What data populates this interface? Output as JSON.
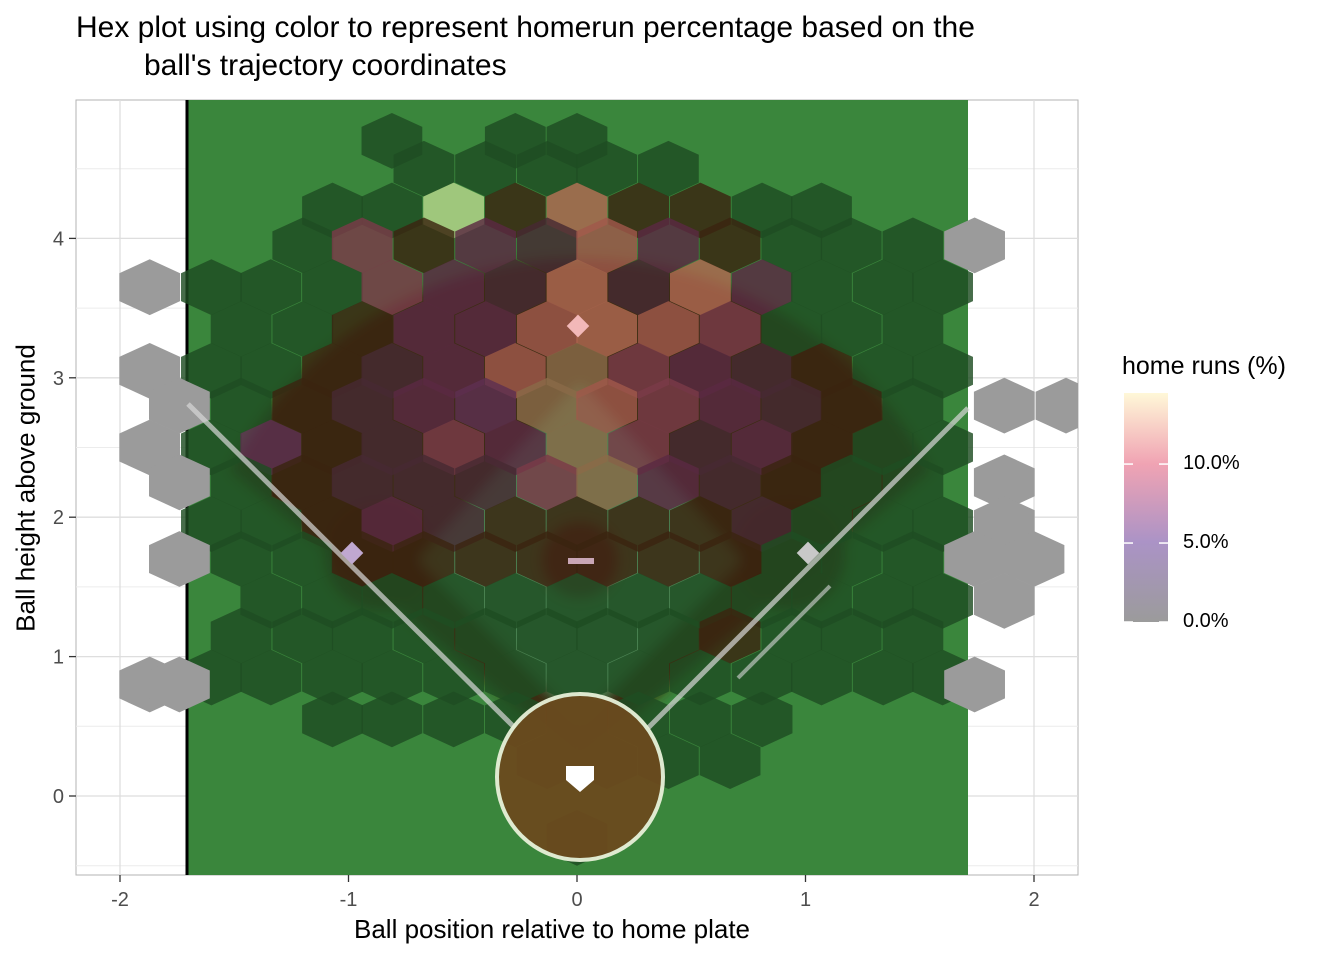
{
  "chart_data": {
    "type": "heatmap",
    "subtype": "hexbin",
    "title": "Hex plot using color to represent homerun percentage based on the",
    "title_line2": "ball's trajectory coordinates",
    "xlabel": "Ball position relative to home plate",
    "ylabel": "Ball height above ground",
    "xlim": [
      -2.2,
      2.2
    ],
    "ylim": [
      -0.55,
      4.98
    ],
    "x_ticks": [
      -2,
      -1,
      0,
      1,
      2
    ],
    "x_tick_labels": [
      "-2",
      "-1",
      "0",
      "1",
      "2"
    ],
    "y_ticks": [
      0,
      1,
      2,
      3,
      4
    ],
    "y_tick_labels": [
      "0",
      "1",
      "2",
      "3",
      "4"
    ],
    "grid": true,
    "legend": {
      "title": "home runs (%)",
      "position": "right",
      "breaks": [
        0,
        5,
        10
      ],
      "labels": [
        "0.0%",
        "5.0%",
        "10.0%"
      ],
      "range": [
        0,
        14.5
      ],
      "colors": [
        "#9b9b9b",
        "#ab93c6",
        "#f0a3b3",
        "#fff8d8"
      ]
    },
    "background": {
      "field_color": "#3a863c",
      "dirt_color": "#3a2410",
      "base_color": "#ffffff"
    },
    "hex_size_x": 0.133,
    "hex_size_y": 0.2,
    "hexes": [
      [
        -0.81,
        4.7,
        0
      ],
      [
        -0.27,
        4.7,
        0
      ],
      [
        0,
        4.7,
        0
      ],
      [
        -0.67,
        4.5,
        0
      ],
      [
        -0.4,
        4.5,
        0
      ],
      [
        -0.13,
        4.5,
        0
      ],
      [
        0.13,
        4.5,
        0
      ],
      [
        0.4,
        4.5,
        0
      ],
      [
        -1.07,
        4.2,
        0
      ],
      [
        -0.81,
        4.2,
        0
      ],
      [
        -0.54,
        4.2,
        12
      ],
      [
        -0.27,
        4.2,
        2
      ],
      [
        0,
        4.2,
        9
      ],
      [
        0.27,
        4.2,
        2
      ],
      [
        0.54,
        4.2,
        2
      ],
      [
        0.81,
        4.2,
        0
      ],
      [
        1.07,
        4.2,
        0
      ],
      [
        -1.2,
        3.95,
        0
      ],
      [
        -0.94,
        3.95,
        6
      ],
      [
        -0.67,
        3.95,
        2
      ],
      [
        -0.4,
        3.95,
        4
      ],
      [
        -0.13,
        3.95,
        3
      ],
      [
        0.13,
        3.95,
        8
      ],
      [
        0.4,
        3.95,
        4
      ],
      [
        0.67,
        3.95,
        2
      ],
      [
        0.94,
        3.95,
        0
      ],
      [
        1.2,
        3.95,
        0
      ],
      [
        1.47,
        3.95,
        0
      ],
      [
        1.74,
        3.95,
        0
      ],
      [
        -1.87,
        3.65,
        0
      ],
      [
        -1.6,
        3.65,
        0
      ],
      [
        -1.34,
        3.65,
        0
      ],
      [
        -1.07,
        3.65,
        0
      ],
      [
        -0.81,
        3.65,
        6
      ],
      [
        -0.54,
        3.65,
        4
      ],
      [
        -0.27,
        3.65,
        3
      ],
      [
        0,
        3.65,
        9
      ],
      [
        0.27,
        3.65,
        3
      ],
      [
        0.54,
        3.65,
        9
      ],
      [
        0.81,
        3.65,
        4
      ],
      [
        1.07,
        3.65,
        0
      ],
      [
        1.34,
        3.65,
        0
      ],
      [
        1.6,
        3.65,
        0
      ],
      [
        -1.47,
        3.35,
        0
      ],
      [
        -1.2,
        3.35,
        0
      ],
      [
        -0.94,
        3.35,
        2
      ],
      [
        -0.67,
        3.35,
        4
      ],
      [
        -0.4,
        3.35,
        4
      ],
      [
        -0.13,
        3.35,
        8
      ],
      [
        0.13,
        3.35,
        9
      ],
      [
        0.4,
        3.35,
        8
      ],
      [
        0.67,
        3.35,
        6
      ],
      [
        0.94,
        3.35,
        0
      ],
      [
        1.2,
        3.35,
        0
      ],
      [
        1.47,
        3.35,
        0
      ],
      [
        -1.87,
        3.05,
        0
      ],
      [
        -1.6,
        3.05,
        0
      ],
      [
        -1.34,
        3.05,
        0
      ],
      [
        -1.07,
        3.05,
        2
      ],
      [
        -0.81,
        3.05,
        3
      ],
      [
        -0.54,
        3.05,
        4
      ],
      [
        -0.27,
        3.05,
        8
      ],
      [
        0,
        3.05,
        7
      ],
      [
        0.27,
        3.05,
        6
      ],
      [
        0.54,
        3.05,
        4
      ],
      [
        0.81,
        3.05,
        3
      ],
      [
        1.07,
        3.05,
        2
      ],
      [
        1.34,
        3.05,
        0
      ],
      [
        1.6,
        3.05,
        0
      ],
      [
        -1.74,
        2.8,
        0
      ],
      [
        -1.47,
        2.8,
        0
      ],
      [
        -1.2,
        2.8,
        2
      ],
      [
        -0.94,
        2.8,
        3
      ],
      [
        -0.67,
        2.8,
        4
      ],
      [
        -0.4,
        2.8,
        5
      ],
      [
        -0.13,
        2.8,
        7
      ],
      [
        0.13,
        2.8,
        8
      ],
      [
        0.4,
        2.8,
        6
      ],
      [
        0.67,
        2.8,
        4
      ],
      [
        0.94,
        2.8,
        3
      ],
      [
        1.2,
        2.8,
        2
      ],
      [
        1.47,
        2.8,
        0
      ],
      [
        1.87,
        2.8,
        0
      ],
      [
        2.14,
        2.8,
        0
      ],
      [
        -1.87,
        2.5,
        0
      ],
      [
        -1.6,
        2.5,
        0
      ],
      [
        -1.34,
        2.5,
        5
      ],
      [
        -1.07,
        2.5,
        2
      ],
      [
        -0.81,
        2.5,
        3
      ],
      [
        -0.54,
        2.5,
        6
      ],
      [
        -0.27,
        2.5,
        4
      ],
      [
        0,
        2.5,
        7
      ],
      [
        0.27,
        2.5,
        6
      ],
      [
        0.54,
        2.5,
        3
      ],
      [
        0.81,
        2.5,
        4
      ],
      [
        1.07,
        2.5,
        2
      ],
      [
        1.34,
        2.5,
        0
      ],
      [
        1.6,
        2.5,
        0
      ],
      [
        -1.74,
        2.25,
        0
      ],
      [
        -1.47,
        2.25,
        0
      ],
      [
        -1.2,
        2.25,
        2
      ],
      [
        -0.94,
        2.25,
        3
      ],
      [
        -0.67,
        2.25,
        3
      ],
      [
        -0.4,
        2.25,
        3
      ],
      [
        -0.13,
        2.25,
        6
      ],
      [
        0.13,
        2.25,
        7
      ],
      [
        0.4,
        2.25,
        4
      ],
      [
        0.67,
        2.25,
        3
      ],
      [
        0.94,
        2.25,
        2
      ],
      [
        1.2,
        2.25,
        0
      ],
      [
        1.47,
        2.25,
        0
      ],
      [
        1.87,
        2.25,
        0
      ],
      [
        -1.6,
        1.95,
        0
      ],
      [
        -1.34,
        1.95,
        0
      ],
      [
        -1.07,
        1.95,
        2
      ],
      [
        -0.81,
        1.95,
        4
      ],
      [
        -0.54,
        1.95,
        3
      ],
      [
        -0.27,
        1.95,
        2
      ],
      [
        0,
        1.95,
        2
      ],
      [
        0.27,
        1.95,
        2
      ],
      [
        0.54,
        1.95,
        2
      ],
      [
        0.81,
        1.95,
        3
      ],
      [
        1.07,
        1.95,
        0
      ],
      [
        1.34,
        1.95,
        0
      ],
      [
        1.6,
        1.95,
        0
      ],
      [
        1.87,
        1.95,
        0
      ],
      [
        -1.74,
        1.7,
        0
      ],
      [
        -1.47,
        1.7,
        0
      ],
      [
        -1.2,
        1.7,
        0
      ],
      [
        -0.94,
        1.7,
        2
      ],
      [
        -0.67,
        1.7,
        2
      ],
      [
        -0.4,
        1.7,
        2
      ],
      [
        -0.13,
        1.7,
        2
      ],
      [
        0.13,
        1.7,
        2
      ],
      [
        0.4,
        1.7,
        2
      ],
      [
        0.67,
        1.7,
        2
      ],
      [
        0.94,
        1.7,
        0
      ],
      [
        1.2,
        1.7,
        0
      ],
      [
        1.47,
        1.7,
        0
      ],
      [
        1.74,
        1.7,
        0
      ],
      [
        2.0,
        1.7,
        0
      ],
      [
        -1.34,
        1.4,
        0
      ],
      [
        -1.07,
        1.4,
        0
      ],
      [
        -0.81,
        1.4,
        0
      ],
      [
        -0.54,
        1.4,
        0
      ],
      [
        -0.27,
        1.4,
        0
      ],
      [
        0,
        1.4,
        0
      ],
      [
        0.27,
        1.4,
        0
      ],
      [
        0.54,
        1.4,
        0
      ],
      [
        0.81,
        1.4,
        0
      ],
      [
        1.07,
        1.4,
        0
      ],
      [
        1.34,
        1.4,
        0
      ],
      [
        1.6,
        1.4,
        0
      ],
      [
        1.87,
        1.4,
        0
      ],
      [
        -1.47,
        1.15,
        0
      ],
      [
        -1.2,
        1.15,
        0
      ],
      [
        -0.94,
        1.15,
        0
      ],
      [
        -0.67,
        1.15,
        0
      ],
      [
        -0.4,
        1.15,
        0
      ],
      [
        -0.13,
        1.15,
        0
      ],
      [
        0.13,
        1.15,
        0
      ],
      [
        0.4,
        1.15,
        0
      ],
      [
        0.67,
        1.15,
        2
      ],
      [
        0.94,
        1.15,
        0
      ],
      [
        1.2,
        1.15,
        0
      ],
      [
        1.47,
        1.15,
        0
      ],
      [
        -1.6,
        0.85,
        0
      ],
      [
        -1.34,
        0.85,
        0
      ],
      [
        -1.07,
        0.85,
        0
      ],
      [
        -0.81,
        0.85,
        0
      ],
      [
        -0.54,
        0.85,
        0
      ],
      [
        -0.27,
        0.85,
        0
      ],
      [
        0,
        0.85,
        0
      ],
      [
        0.27,
        0.85,
        0
      ],
      [
        0.54,
        0.85,
        0
      ],
      [
        0.81,
        0.85,
        0
      ],
      [
        1.07,
        0.85,
        0
      ],
      [
        1.34,
        0.85,
        0
      ],
      [
        1.6,
        0.85,
        0
      ],
      [
        -1.87,
        0.8,
        0
      ],
      [
        -1.74,
        0.8,
        0
      ],
      [
        1.74,
        0.8,
        0
      ],
      [
        -1.07,
        0.55,
        0
      ],
      [
        -0.81,
        0.55,
        0
      ],
      [
        -0.54,
        0.55,
        0
      ],
      [
        -0.27,
        0.55,
        0
      ],
      [
        0,
        0.55,
        0
      ],
      [
        0.27,
        0.55,
        0
      ],
      [
        0.54,
        0.55,
        0
      ],
      [
        0.81,
        0.55,
        0
      ],
      [
        -0.13,
        0.25,
        0
      ],
      [
        0.13,
        0.25,
        0
      ],
      [
        0.4,
        0.25,
        0
      ],
      [
        0.67,
        0.25,
        0
      ],
      [
        0,
        -0.3,
        0
      ]
    ]
  }
}
